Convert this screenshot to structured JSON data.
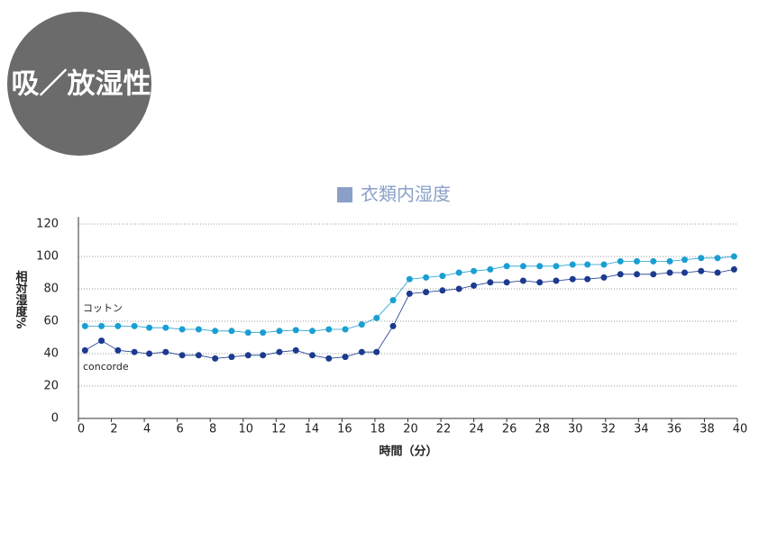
{
  "header": {
    "title": "吸／放湿性"
  },
  "chart_data": {
    "type": "line",
    "title": "衣類内湿度",
    "xlabel": "時間（分）",
    "ylabel": "相対湿度%",
    "xlim": [
      0,
      40
    ],
    "xticks": [
      0,
      2,
      4,
      6,
      8,
      10,
      12,
      14,
      16,
      18,
      20,
      22,
      24,
      26,
      28,
      30,
      32,
      34,
      36,
      38,
      40
    ],
    "ylim": [
      0,
      120
    ],
    "yticks": [
      0,
      20,
      40,
      60,
      80,
      100,
      120
    ],
    "grid": true,
    "x": [
      0.4,
      1.4,
      2.4,
      3.4,
      4.3,
      5.3,
      6.3,
      7.3,
      8.3,
      9.3,
      10.3,
      11.2,
      12.2,
      13.2,
      14.2,
      15.2,
      16.2,
      17.2,
      18.1,
      19.1,
      20.1,
      21.1,
      22.1,
      23.1,
      24.0,
      25.0,
      26.0,
      27.0,
      28.0,
      29.0,
      30.0,
      30.9,
      31.9,
      32.9,
      33.9,
      34.9,
      35.9,
      36.8,
      37.8,
      38.8,
      39.8
    ],
    "series": [
      {
        "name": "コットン",
        "color": "#1a9fd2",
        "values": [
          57,
          57,
          57,
          57,
          56,
          56,
          55,
          55,
          54,
          54,
          53,
          53,
          54,
          54.5,
          54,
          55,
          55,
          58,
          62,
          73,
          86,
          87,
          88,
          90,
          91,
          92,
          94,
          94,
          94,
          94,
          95,
          95,
          95,
          97,
          97,
          97,
          97,
          98,
          99,
          99,
          100
        ]
      },
      {
        "name": "concorde",
        "color": "#1c3a8e",
        "values": [
          42,
          48,
          42,
          41,
          40,
          41,
          39,
          39,
          37,
          38,
          39,
          39,
          41,
          42,
          39,
          37,
          38,
          41,
          41,
          57,
          77,
          78,
          79,
          80,
          82,
          84,
          84,
          85,
          84,
          85,
          86,
          86,
          87,
          89,
          89,
          89,
          90,
          90,
          91,
          90,
          92
        ]
      }
    ],
    "legend_color": "#8aa0c8"
  }
}
